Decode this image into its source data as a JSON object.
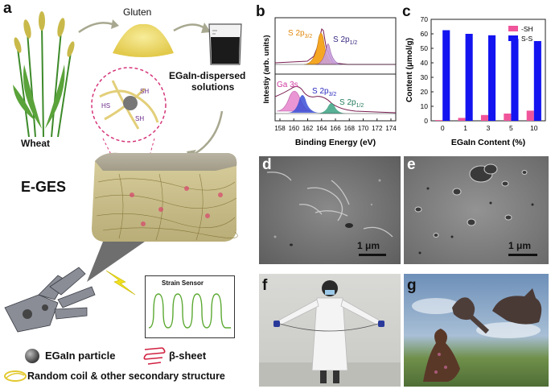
{
  "panels": {
    "a": {
      "letter": "a",
      "wheat_label": "Wheat",
      "gluten_label": "Gluten",
      "solution_label_line1": "EGaIn-dispersed",
      "solution_label_line2": "solutions",
      "composite_label": "E-GES",
      "sensor_title": "Strain Sensor",
      "inset_labels": [
        "HS",
        "SH",
        "SH"
      ],
      "legend": {
        "particle": "EGaIn particle",
        "sheet": "β-sheet",
        "coil": "Random coil & other secondary structure"
      }
    },
    "b": {
      "letter": "b",
      "ylabel": "Intestiy (arb. units)",
      "xlabel": "Binding Energy (eV)",
      "xticks": [
        "158",
        "160",
        "162",
        "164",
        "166",
        "168",
        "170",
        "172",
        "174"
      ],
      "top_labels": {
        "s2p32": "S 2p",
        "s2p32_sub": "3/2",
        "s2p12": "S 2p",
        "s2p12_sub": "1/2"
      },
      "bottom_labels": {
        "ga3s": "Ga 3s",
        "s2p32": "S 2p",
        "s2p32_sub": "3/2",
        "s2p12": "S 2p",
        "s2p12_sub": "1/2"
      }
    },
    "c": {
      "letter": "c",
      "scale_label": "1 μm"
    },
    "d": {
      "letter": "d",
      "scale_label": "1 μm"
    },
    "e": {
      "letter": "e",
      "scale_label": "1 μm"
    },
    "f": {
      "letter": "f"
    },
    "g": {
      "letter": "g"
    }
  },
  "colors": {
    "sh": "#f0559b",
    "ss": "#1414f0",
    "s2p32_fill": "#f5a623",
    "s2p12_fill": "#c9a0dc",
    "ga3s_fill": "#e88bd0",
    "s2p32b_fill": "#3a4fd6",
    "s2p12b_fill": "#2e9c7a",
    "envelope": "#7a1d52"
  },
  "chart_data": {
    "type": "bar",
    "ylabel": "Content (μmol/g)",
    "xlabel": "EGaIn Content (%)",
    "categories": [
      "0",
      "1",
      "3",
      "5",
      "10"
    ],
    "ylim": [
      0,
      70
    ],
    "yticks": [
      0,
      10,
      20,
      30,
      40,
      50,
      60,
      70
    ],
    "legend_position": "top-right",
    "series": [
      {
        "name": "-SH",
        "values": [
          0.5,
          2,
          4,
          5,
          7
        ]
      },
      {
        "name": "S-S",
        "values": [
          62.5,
          60,
          59,
          56.5,
          55
        ]
      }
    ]
  }
}
